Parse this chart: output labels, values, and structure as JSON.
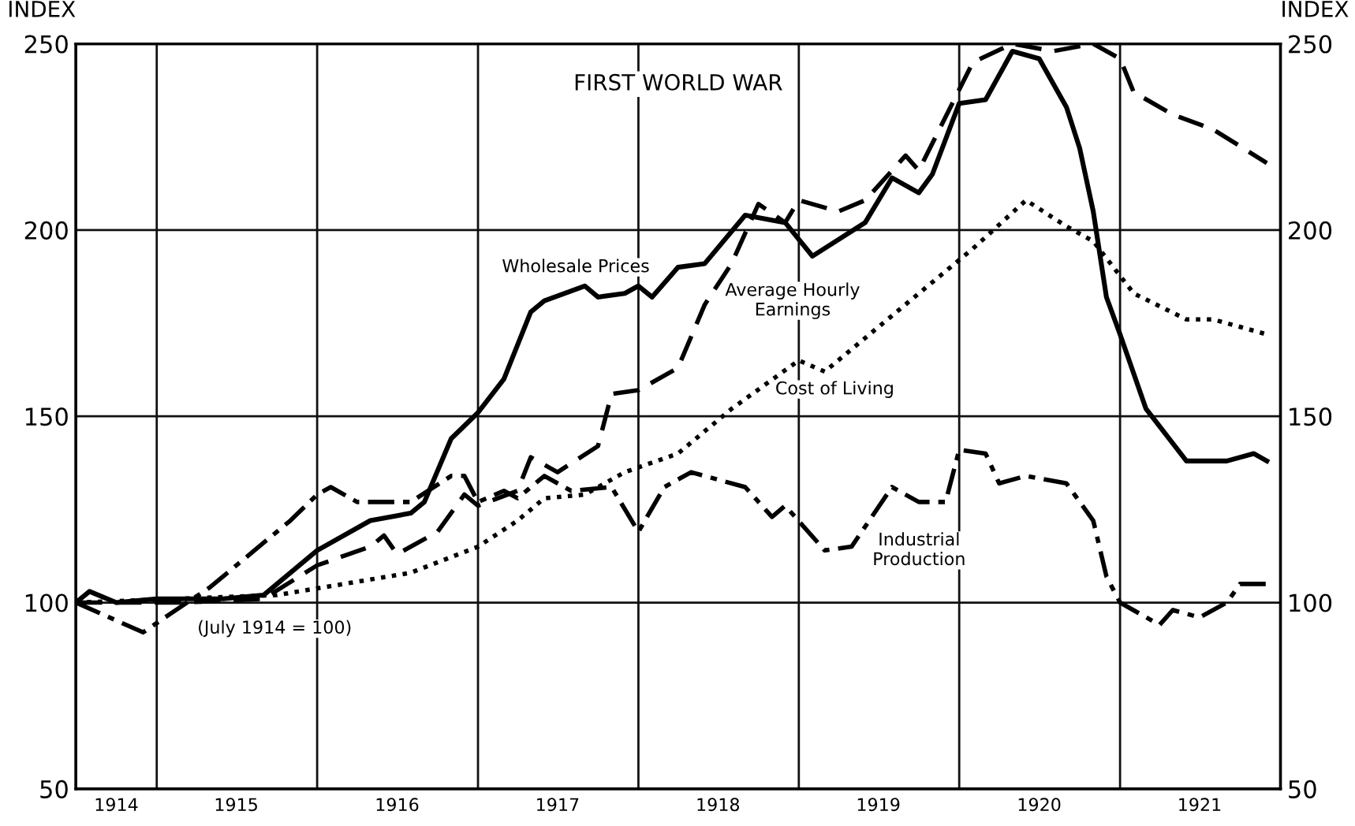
{
  "chart_data": {
    "type": "line",
    "title": "FIRST WORLD WAR",
    "ylabel": "INDEX",
    "y2label": "INDEX",
    "annotations": [
      "(July 1914 = 100)"
    ],
    "xlim": [
      "1914-07",
      "1922-01"
    ],
    "xticks": [
      {
        "value": "1914-10",
        "label": "1914"
      },
      {
        "value": "1915-01",
        "label": null
      },
      {
        "value": "1915-07",
        "label": "1915"
      },
      {
        "value": "1916-01",
        "label": null
      },
      {
        "value": "1916-07",
        "label": "1916"
      },
      {
        "value": "1917-01",
        "label": null
      },
      {
        "value": "1917-07",
        "label": "1917"
      },
      {
        "value": "1918-01",
        "label": null
      },
      {
        "value": "1918-07",
        "label": "1918"
      },
      {
        "value": "1919-01",
        "label": null
      },
      {
        "value": "1919-07",
        "label": "1919"
      },
      {
        "value": "1920-01",
        "label": null
      },
      {
        "value": "1920-07",
        "label": "1920"
      },
      {
        "value": "1921-01",
        "label": null
      },
      {
        "value": "1921-07",
        "label": "1921"
      }
    ],
    "ylim": [
      50,
      250
    ],
    "yticks": [
      50,
      100,
      150,
      200,
      250
    ],
    "y2lim": [
      50,
      250
    ],
    "y2ticks": [
      50,
      100,
      150,
      200,
      250
    ],
    "grid": true,
    "legend": false,
    "marker": "none",
    "series": [
      {
        "name": "Wholesale Prices",
        "color": "#000000",
        "line_style": "solid",
        "x": [
          "1914-07",
          "1914-08",
          "1914-10",
          "1915-01",
          "1915-06",
          "1915-09",
          "1916-01",
          "1916-05",
          "1916-08",
          "1916-09",
          "1916-11",
          "1917-01",
          "1917-03",
          "1917-05",
          "1917-06",
          "1917-09",
          "1917-10",
          "1917-12",
          "1918-01",
          "1918-02",
          "1918-04",
          "1918-06",
          "1918-09",
          "1918-12",
          "1919-02",
          "1919-06",
          "1919-08",
          "1919-10",
          "1919-11",
          "1920-01",
          "1920-03",
          "1920-05",
          "1920-07",
          "1920-09",
          "1920-10",
          "1920-11",
          "1920-12",
          "1921-01",
          "1921-03",
          "1921-06",
          "1921-09",
          "1921-11",
          "1921-12"
        ],
        "values": [
          100,
          103,
          100,
          101,
          101,
          102,
          114,
          122,
          124,
          127,
          144,
          151,
          160,
          178,
          181,
          185,
          182,
          183,
          185,
          182,
          190,
          191,
          204,
          202,
          193,
          202,
          214,
          210,
          215,
          234,
          235,
          248,
          246,
          233,
          222,
          205,
          182,
          172,
          152,
          138,
          138,
          140,
          138
        ]
      },
      {
        "name": "Average Hourly Earnings",
        "color": "#000000",
        "line_style": "dashed",
        "x": [
          "1914-07",
          "1915-03",
          "1915-09",
          "1916-01",
          "1916-05",
          "1916-06",
          "1916-07",
          "1916-10",
          "1916-12",
          "1917-01",
          "1917-04",
          "1917-05",
          "1917-07",
          "1917-10",
          "1917-11",
          "1918-01",
          "1918-04",
          "1918-06",
          "1918-08",
          "1918-10",
          "1918-12",
          "1919-01",
          "1919-04",
          "1919-06",
          "1919-09",
          "1919-10",
          "1920-02",
          "1920-05",
          "1920-08",
          "1920-11",
          "1921-01",
          "1921-02",
          "1921-05",
          "1921-08",
          "1921-12"
        ],
        "values": [
          100,
          100,
          101,
          110,
          115,
          118,
          113,
          119,
          129,
          126,
          130,
          139,
          135,
          142,
          156,
          157,
          163,
          180,
          191,
          207,
          202,
          208,
          205,
          208,
          220,
          216,
          245,
          250,
          248,
          250,
          246,
          237,
          231,
          227,
          218
        ]
      },
      {
        "name": "Cost of Living",
        "color": "#000000",
        "line_style": "dotted",
        "x": [
          "1914-07",
          "1915-10",
          "1916-08",
          "1917-01",
          "1917-04",
          "1917-06",
          "1917-09",
          "1917-12",
          "1918-04",
          "1918-08",
          "1919-01",
          "1919-03",
          "1919-08",
          "1920-02",
          "1920-06",
          "1920-09",
          "1920-11",
          "1921-02",
          "1921-06",
          "1921-08",
          "1921-12"
        ],
        "values": [
          100,
          102,
          108,
          115,
          122,
          128,
          129,
          135,
          140,
          152,
          165,
          162,
          177,
          195,
          208,
          201,
          197,
          183,
          176,
          176,
          172
        ]
      },
      {
        "name": "Industrial Production",
        "color": "#000000",
        "line_style": "dashdot",
        "x": [
          "1914-07",
          "1914-12",
          "1915-02",
          "1915-05",
          "1915-11",
          "1916-01",
          "1916-02",
          "1916-04",
          "1916-08",
          "1916-11",
          "1916-12",
          "1917-01",
          "1917-03",
          "1917-04",
          "1917-06",
          "1917-08",
          "1917-11",
          "1918-01",
          "1918-03",
          "1918-05",
          "1918-07",
          "1918-09",
          "1918-11",
          "1918-12",
          "1919-03",
          "1919-05",
          "1919-08",
          "1919-10",
          "1919-12",
          "1920-01",
          "1920-03",
          "1920-04",
          "1920-06",
          "1920-09",
          "1920-11",
          "1920-12",
          "1921-01",
          "1921-04",
          "1921-05",
          "1921-07",
          "1921-09",
          "1921-10",
          "1921-12"
        ],
        "values": [
          100,
          92,
          97,
          104,
          122,
          129,
          131,
          127,
          127,
          134,
          134,
          127,
          130,
          128,
          134,
          130,
          131,
          119,
          131,
          135,
          133,
          131,
          123,
          126,
          114,
          115,
          131,
          127,
          127,
          141,
          140,
          132,
          134,
          132,
          122,
          107,
          100,
          94,
          98,
          96,
          100,
          105,
          105
        ]
      }
    ]
  }
}
